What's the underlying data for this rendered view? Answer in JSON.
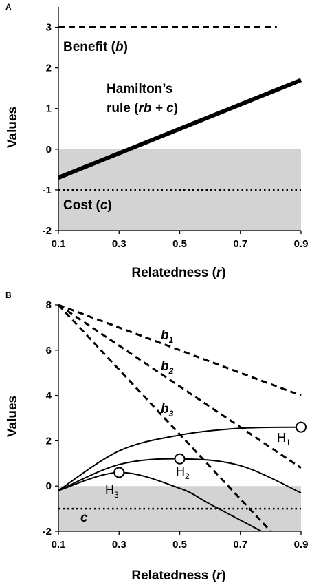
{
  "chart_data": [
    {
      "panel_label": "A",
      "type": "line",
      "xlabel": "Relatedness (",
      "xlabel_var": "r",
      "xlabel_end": ")",
      "ylabel": "Values",
      "xlim": [
        0.1,
        0.9
      ],
      "ylim": [
        -2,
        3.5
      ],
      "xticks": [
        "0.1",
        "0.3",
        "0.5",
        "0.7",
        "0.9"
      ],
      "yticks": [
        "-2",
        "-1",
        "0",
        "1",
        "2",
        "3"
      ],
      "shaded_region": {
        "y_from": -2,
        "y_to": 0,
        "color": "#d3d3d3"
      },
      "series": [
        {
          "key": "benefit",
          "style": "dashed",
          "x": [
            0.1,
            0.82
          ],
          "y": [
            3,
            3
          ]
        },
        {
          "key": "hamilton",
          "style": "thick",
          "x": [
            0.1,
            0.9
          ],
          "y": [
            -0.7,
            1.7
          ]
        },
        {
          "key": "cost",
          "style": "dotted",
          "x": [
            0.1,
            0.9
          ],
          "y": [
            -1,
            -1
          ]
        }
      ],
      "annotations": {
        "benefit": {
          "text": "Benefit (",
          "var": "b",
          "end": ")"
        },
        "hamilton_1": "Hamilton’s",
        "hamilton_2": {
          "text": "rule (",
          "var": "rb + c",
          "end": ")"
        },
        "cost": {
          "text": "Cost (",
          "var": "c",
          "end": ")"
        }
      }
    },
    {
      "panel_label": "B",
      "type": "line",
      "xlabel": "Relatedness (",
      "xlabel_var": "r",
      "xlabel_end": ")",
      "ylabel": "Values",
      "xlim": [
        0.1,
        0.9
      ],
      "ylim": [
        -2,
        8
      ],
      "xticks": [
        "0.1",
        "0.3",
        "0.5",
        "0.7",
        "0.9"
      ],
      "yticks": [
        "-2",
        "0",
        "2",
        "4",
        "6",
        "8"
      ],
      "shaded_region": {
        "y_from": -2,
        "y_to": 0,
        "color": "#d3d3d3"
      },
      "benefit_lines": [
        {
          "label": "b",
          "sub": "1",
          "style": "dashed",
          "x": [
            0.1,
            0.9
          ],
          "y": [
            8,
            4
          ]
        },
        {
          "label": "b",
          "sub": "2",
          "style": "dashed",
          "x": [
            0.1,
            0.9
          ],
          "y": [
            8,
            0.8
          ]
        },
        {
          "label": "b",
          "sub": "3",
          "style": "dashed",
          "x": [
            0.1,
            0.8
          ],
          "y": [
            8,
            -2
          ]
        }
      ],
      "cost_line": {
        "label": "c",
        "style": "dotted",
        "y": -1
      },
      "hamilton_curves": [
        {
          "label": "H",
          "sub": "1",
          "peak": [
            0.9,
            2.6
          ],
          "x": [
            0.1,
            0.3,
            0.5,
            0.7,
            0.9
          ],
          "y": [
            -0.2,
            1.55,
            2.25,
            2.55,
            2.6
          ]
        },
        {
          "label": "H",
          "sub": "2",
          "peak": [
            0.5,
            1.2
          ],
          "x": [
            0.1,
            0.3,
            0.5,
            0.7,
            0.9
          ],
          "y": [
            -0.2,
            0.95,
            1.2,
            0.9,
            -0.3
          ]
        },
        {
          "label": "H",
          "sub": "3",
          "peak": [
            0.3,
            0.6
          ],
          "x": [
            0.1,
            0.3,
            0.5,
            0.6,
            0.77
          ],
          "y": [
            -0.2,
            0.6,
            -0.1,
            -0.8,
            -2
          ]
        }
      ]
    }
  ]
}
